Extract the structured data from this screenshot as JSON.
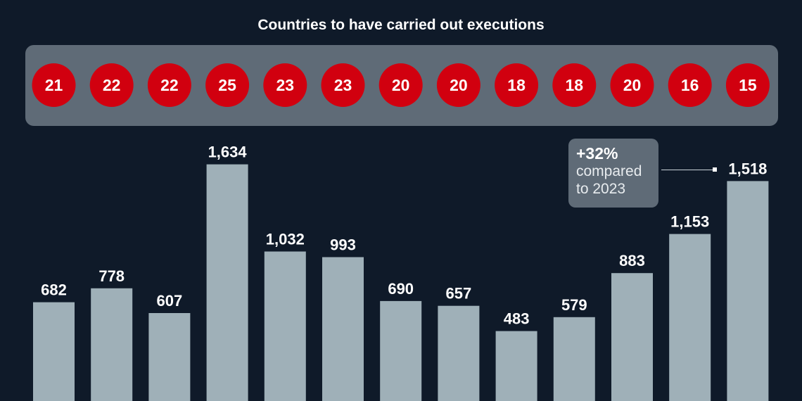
{
  "header": {
    "title": "Countries to have carried out executions"
  },
  "chart_data": {
    "type": "bar",
    "title": "",
    "xlabel": "",
    "ylabel": "",
    "ylim": [
      0,
      1700
    ],
    "grid": false,
    "categories": [
      "",
      "",
      "",
      "",
      "",
      "",
      "",
      "",
      "",
      "",
      "",
      "",
      ""
    ],
    "series": [
      {
        "values": [
          682,
          778,
          607,
          1634,
          1032,
          993,
          690,
          657,
          483,
          579,
          883,
          1153,
          1518
        ],
        "labels": [
          "682",
          "778",
          "607",
          "1,634",
          "1,032",
          "993",
          "690",
          "657",
          "483",
          "579",
          "883",
          "1,153",
          "1,518"
        ],
        "color": "#9fb0b8"
      }
    ],
    "countries": [
      21,
      22,
      22,
      25,
      23,
      23,
      20,
      20,
      18,
      18,
      20,
      16,
      15
    ],
    "country_circle_color": "#d1000f",
    "annotation": {
      "pct": "+32%",
      "line1": "compared",
      "line2": "to 2023"
    }
  },
  "colors": {
    "background": "#0f1a29",
    "panel": "#5f6b77",
    "bar": "#9fb0b8",
    "circle": "#d1000f"
  }
}
